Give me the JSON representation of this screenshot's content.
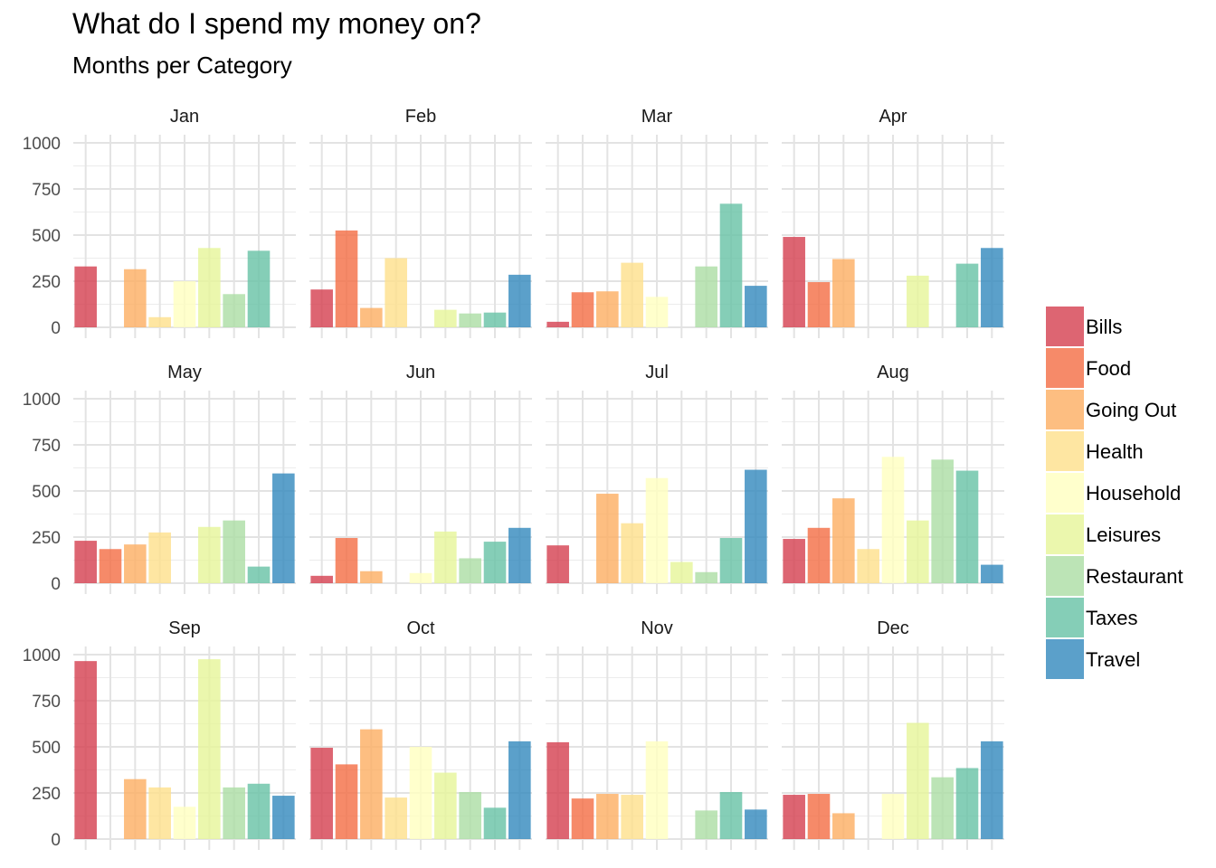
{
  "title": "What do I spend my money on?",
  "subtitle": "Months per Category",
  "chart_data": {
    "type": "bar",
    "title": "What do I spend my money on?",
    "subtitle": "Months per Category",
    "xlabel": "",
    "ylabel": "",
    "ylim": [
      0,
      1000
    ],
    "y_ticks": [
      0,
      250,
      500,
      750,
      1000
    ],
    "grid": true,
    "legend_position": "right",
    "categories": [
      "Bills",
      "Food",
      "Going Out",
      "Health",
      "Household",
      "Leisures",
      "Restaurant",
      "Taxes",
      "Travel"
    ],
    "colors": [
      "#d53e4f",
      "#f46d43",
      "#fdae61",
      "#fee08b",
      "#ffffbf",
      "#e6f598",
      "#abdda4",
      "#66c2a5",
      "#3288bd"
    ],
    "facets": [
      {
        "month": "Jan",
        "values": [
          330,
          0,
          315,
          55,
          250,
          430,
          180,
          415,
          0
        ]
      },
      {
        "month": "Feb",
        "values": [
          205,
          525,
          105,
          375,
          0,
          95,
          75,
          80,
          285
        ]
      },
      {
        "month": "Mar",
        "values": [
          30,
          190,
          195,
          350,
          165,
          0,
          330,
          670,
          225
        ]
      },
      {
        "month": "Apr",
        "values": [
          490,
          245,
          370,
          0,
          0,
          280,
          0,
          345,
          430
        ]
      },
      {
        "month": "May",
        "values": [
          230,
          185,
          210,
          275,
          0,
          305,
          340,
          90,
          595
        ]
      },
      {
        "month": "Jun",
        "values": [
          40,
          245,
          65,
          0,
          55,
          280,
          135,
          225,
          300
        ]
      },
      {
        "month": "Jul",
        "values": [
          205,
          0,
          485,
          325,
          570,
          115,
          60,
          245,
          615
        ]
      },
      {
        "month": "Aug",
        "values": [
          240,
          300,
          460,
          185,
          685,
          340,
          670,
          610,
          100
        ]
      },
      {
        "month": "Sep",
        "values": [
          965,
          0,
          325,
          280,
          175,
          975,
          280,
          300,
          235
        ]
      },
      {
        "month": "Oct",
        "values": [
          495,
          405,
          595,
          225,
          500,
          360,
          255,
          170,
          530
        ]
      },
      {
        "month": "Nov",
        "values": [
          525,
          220,
          245,
          240,
          530,
          0,
          155,
          255,
          160
        ]
      },
      {
        "month": "Dec",
        "values": [
          240,
          245,
          140,
          0,
          245,
          630,
          335,
          385,
          530
        ]
      }
    ]
  }
}
